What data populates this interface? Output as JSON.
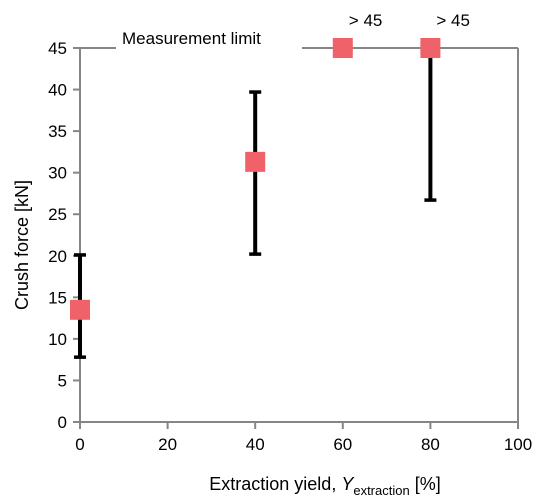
{
  "chart_data": {
    "type": "scatter",
    "xlabel_main": "Extraction yield, ",
    "xlabel_var": "Y",
    "xlabel_sub": "extraction",
    "xlabel_unit": " [%]",
    "ylabel": "Crush force [kN]",
    "xlim": [
      0,
      100
    ],
    "ylim": [
      0,
      45
    ],
    "xticks": [
      0,
      20,
      40,
      60,
      80,
      100
    ],
    "yticks": [
      0,
      5,
      10,
      15,
      20,
      25,
      30,
      35,
      40,
      45
    ],
    "grid": false,
    "series": [
      {
        "x": [
          0,
          40,
          60,
          80
        ],
        "y": [
          13.5,
          31.3,
          45,
          45
        ],
        "err_low": [
          7.8,
          20.2,
          null,
          26.7
        ],
        "err_high": [
          20.1,
          39.7,
          null,
          45
        ],
        "color": "#f0626a",
        "marker": "square"
      }
    ],
    "limit_line": {
      "y": 45,
      "label": "Measurement limit"
    },
    "annotations": [
      {
        "x": 60,
        "text": "> 45"
      },
      {
        "x": 80,
        "text": "> 45"
      }
    ]
  }
}
